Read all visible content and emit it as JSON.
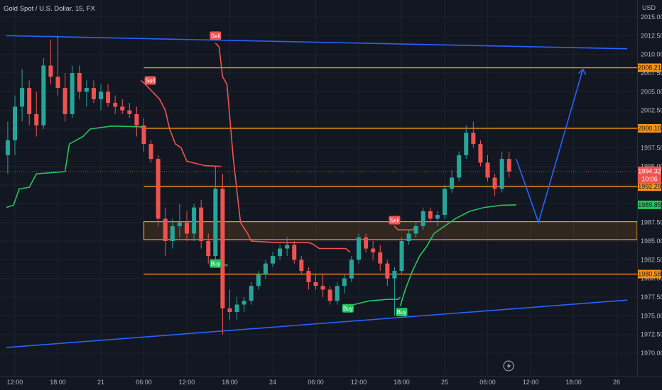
{
  "header": {
    "title": "Gold Spot / U.S. Dollar, 15, FX",
    "currency": "USD"
  },
  "chart_data": {
    "type": "candlestick",
    "title": "Gold Spot / U.S. Dollar, 15, FX",
    "y_unit": "USD",
    "ylim": [
      1967.5,
      2016.5
    ],
    "y_ticks": [
      1970,
      1972.5,
      1975,
      1977.5,
      1980,
      1982.5,
      1985,
      1987.5,
      1990,
      1992.5,
      1995,
      1997.5,
      2000,
      2002.5,
      2005,
      2007.5,
      2010,
      2012.5,
      2015
    ],
    "x_ticks": [
      {
        "label": "12:00",
        "t": 0
      },
      {
        "label": "18:00",
        "t": 6
      },
      {
        "label": "21",
        "t": 12
      },
      {
        "label": "06:00",
        "t": 18
      },
      {
        "label": "12:00",
        "t": 24
      },
      {
        "label": "18:00",
        "t": 30
      },
      {
        "label": "24",
        "t": 36
      },
      {
        "label": "06:00",
        "t": 42
      },
      {
        "label": "12:00",
        "t": 48
      },
      {
        "label": "18:00",
        "t": 54
      },
      {
        "label": "25",
        "t": 60
      },
      {
        "label": "06:00",
        "t": 66
      },
      {
        "label": "12:00",
        "t": 72
      },
      {
        "label": "18:00",
        "t": 78
      },
      {
        "label": "26",
        "t": 84
      }
    ],
    "current_price": "1994.32",
    "countdown": "10:06",
    "price_tags": [
      {
        "label": "2008.21",
        "value": 2008.21,
        "color": "#f7931a",
        "text_color": "#131722"
      },
      {
        "label": "2000.10",
        "value": 2000.1,
        "color": "#f7931a",
        "text_color": "#131722"
      },
      {
        "label": "1992.29",
        "value": 1992.29,
        "color": "#f7931a",
        "text_color": "#131722"
      },
      {
        "label": "1989.85",
        "value": 1989.85,
        "color": "#22c55e",
        "text_color": "#131722"
      },
      {
        "label": "1980.58",
        "value": 1980.58,
        "color": "#f7931a",
        "text_color": "#131722"
      }
    ],
    "horizontal_levels": [
      {
        "value": 2008.21,
        "t_start": 18
      },
      {
        "value": 2000.1,
        "t_start": 18
      },
      {
        "value": 1992.29,
        "t_start": 18
      },
      {
        "value": 1980.58,
        "t_start": 18
      }
    ],
    "zone": {
      "low": 1985.2,
      "high": 1987.6,
      "t_start": 18
    },
    "trendlines": [
      {
        "name": "upper",
        "p1": [
          -1.2,
          2012.5
        ],
        "p2": [
          85.5,
          2010.75
        ]
      },
      {
        "name": "lower",
        "p1": [
          -1.2,
          1970.75
        ],
        "p2": [
          85.5,
          1977.1
        ]
      }
    ],
    "projection": [
      [
        70.0,
        1996.0
      ],
      [
        73.1,
        1987.5
      ],
      [
        79.3,
        2008.0
      ]
    ],
    "candles": [
      [
        -1,
        1996.5,
        2001.0,
        1994.0,
        1998.5
      ],
      [
        0,
        1998.5,
        2004.5,
        1996.5,
        2003.0
      ],
      [
        1,
        2003.0,
        2008.0,
        2001.0,
        2005.5
      ],
      [
        2,
        2005.5,
        2006.5,
        2000.5,
        2002.0
      ],
      [
        3,
        2002.0,
        2005.0,
        1999.0,
        2000.5
      ],
      [
        4,
        2000.5,
        2009.5,
        2000.0,
        2008.5
      ],
      [
        5,
        2008.5,
        2012.0,
        2006.0,
        2007.0
      ],
      [
        6,
        2007.0,
        2012.5,
        2004.5,
        2005.5
      ],
      [
        7,
        2005.5,
        2007.5,
        2001.0,
        2002.0
      ],
      [
        8,
        2002.0,
        2008.5,
        2001.5,
        2007.5
      ],
      [
        9,
        2007.5,
        2008.5,
        2004.0,
        2005.0
      ],
      [
        10,
        2005.0,
        2006.5,
        2003.0,
        2005.5
      ],
      [
        11,
        2005.5,
        2006.5,
        2003.5,
        2004.0
      ],
      [
        12,
        2004.0,
        2006.0,
        2002.5,
        2005.0
      ],
      [
        13,
        2005.0,
        2006.0,
        2003.0,
        2003.5
      ],
      [
        14,
        2003.5,
        2004.5,
        2002.0,
        2003.0
      ],
      [
        15,
        2003.0,
        2004.0,
        2002.0,
        2002.5
      ],
      [
        16,
        2002.5,
        2003.5,
        2001.5,
        2002.0
      ],
      [
        17,
        2002.0,
        2003.0,
        1999.0,
        2000.5
      ],
      [
        18,
        2000.5,
        2001.5,
        1997.0,
        1998.0
      ],
      [
        19,
        1998.0,
        1998.5,
        1995.5,
        1996.0
      ],
      [
        20,
        1996.0,
        1996.5,
        1987.0,
        1988.0
      ],
      [
        21,
        1988.0,
        1989.5,
        1983.0,
        1985.0
      ],
      [
        22,
        1985.0,
        1988.0,
        1984.0,
        1987.0
      ],
      [
        23,
        1987.0,
        1990.0,
        1985.5,
        1987.5
      ],
      [
        24,
        1987.5,
        1989.0,
        1985.0,
        1986.0
      ],
      [
        25,
        1986.0,
        1990.0,
        1985.0,
        1989.5
      ],
      [
        26,
        1989.5,
        1990.5,
        1984.0,
        1985.0
      ],
      [
        27,
        1985.0,
        1986.0,
        1982.0,
        1983.0
      ],
      [
        28,
        1983.0,
        1995.0,
        1982.5,
        1992.0
      ],
      [
        29,
        1992.0,
        1994.0,
        1972.5,
        1976.0
      ],
      [
        30,
        1976.0,
        1978.5,
        1974.5,
        1975.5
      ],
      [
        31,
        1975.5,
        1977.5,
        1974.5,
        1976.5
      ],
      [
        32,
        1976.5,
        1977.5,
        1975.5,
        1977.0
      ],
      [
        33,
        1977.0,
        1979.5,
        1976.5,
        1979.0
      ],
      [
        34,
        1979.0,
        1981.0,
        1978.5,
        1980.5
      ],
      [
        35,
        1980.5,
        1982.5,
        1980.0,
        1982.0
      ],
      [
        36,
        1982.0,
        1983.5,
        1981.5,
        1983.0
      ],
      [
        37,
        1983.0,
        1984.5,
        1982.5,
        1984.0
      ],
      [
        38,
        1984.0,
        1985.5,
        1983.0,
        1984.5
      ],
      [
        39,
        1984.5,
        1985.0,
        1982.0,
        1982.5
      ],
      [
        40,
        1982.5,
        1983.0,
        1980.5,
        1981.0
      ],
      [
        41,
        1981.0,
        1981.5,
        1978.5,
        1979.5
      ],
      [
        42,
        1979.5,
        1980.5,
        1978.5,
        1979.0
      ],
      [
        43,
        1979.0,
        1980.5,
        1977.5,
        1978.5
      ],
      [
        44,
        1978.5,
        1979.0,
        1976.5,
        1977.0
      ],
      [
        45,
        1977.0,
        1979.5,
        1976.5,
        1979.0
      ],
      [
        46,
        1979.0,
        1980.5,
        1978.0,
        1980.0
      ],
      [
        47,
        1980.0,
        1983.0,
        1979.5,
        1982.5
      ],
      [
        48,
        1982.5,
        1986.0,
        1982.0,
        1985.5
      ],
      [
        49,
        1985.5,
        1986.0,
        1983.5,
        1984.0
      ],
      [
        50,
        1984.0,
        1985.0,
        1982.5,
        1983.5
      ],
      [
        51,
        1983.5,
        1984.5,
        1981.0,
        1982.0
      ],
      [
        52,
        1982.0,
        1982.5,
        1979.0,
        1980.0
      ],
      [
        53,
        1980.0,
        1981.5,
        1975.0,
        1981.0
      ],
      [
        54,
        1981.0,
        1985.5,
        1980.5,
        1985.0
      ],
      [
        55,
        1985.0,
        1986.5,
        1984.5,
        1986.0
      ],
      [
        56,
        1986.0,
        1987.5,
        1985.5,
        1987.0
      ],
      [
        57,
        1987.0,
        1989.5,
        1986.5,
        1989.0
      ],
      [
        58,
        1989.0,
        1989.5,
        1987.5,
        1988.0
      ],
      [
        59,
        1988.0,
        1989.0,
        1987.0,
        1988.5
      ],
      [
        60,
        1988.5,
        1992.5,
        1988.0,
        1992.0
      ],
      [
        61,
        1992.0,
        1994.5,
        1991.5,
        1993.5
      ],
      [
        62,
        1993.5,
        1997.0,
        1993.0,
        1996.5
      ],
      [
        63,
        1996.5,
        2000.5,
        1996.0,
        1999.5
      ],
      [
        64,
        1999.5,
        2001.0,
        1997.5,
        1998.0
      ],
      [
        65,
        1998.0,
        1998.5,
        1995.0,
        1995.5
      ],
      [
        66,
        1995.5,
        1996.5,
        1993.0,
        1993.5
      ],
      [
        67,
        1993.5,
        1994.0,
        1991.0,
        1992.0
      ],
      [
        68,
        1992.0,
        1997.0,
        1991.5,
        1996.0
      ],
      [
        69,
        1996.0,
        1997.0,
        1993.5,
        1994.32
      ]
    ],
    "indicator_lines": [
      {
        "name": "green",
        "color": "#22c55e",
        "points": [
          [
            -1.2,
            1989.5
          ],
          [
            -0.2,
            1989.8
          ],
          [
            0.6,
            1992.0
          ],
          [
            2,
            1992.2
          ],
          [
            3,
            1994.0
          ],
          [
            7,
            1994.3
          ],
          [
            7.6,
            1998.0
          ],
          [
            9.5,
            1999.0
          ],
          [
            10.5,
            2000.0
          ],
          [
            13.5,
            2000.4
          ],
          [
            17.6,
            2000.3
          ],
          [
            17.6,
            2000.1
          ]
        ]
      },
      {
        "name": "green",
        "color": "#22c55e",
        "points": [
          [
            28.2,
            1982.0
          ],
          [
            28.4,
            1981.8
          ],
          [
            29.6,
            1981.8
          ],
          [
            29.6,
            1981.6
          ]
        ]
      },
      {
        "name": "green",
        "color": "#22c55e",
        "points": [
          [
            46.5,
            1976.3
          ],
          [
            49.5,
            1977.0
          ],
          [
            52,
            1977.2
          ],
          [
            53.5,
            1977.2
          ],
          [
            53.8,
            1977.5
          ]
        ]
      },
      {
        "name": "green",
        "color": "#22c55e",
        "points": [
          [
            53.8,
            1976.3
          ],
          [
            54.5,
            1978.5
          ],
          [
            55.5,
            1981.0
          ],
          [
            56.5,
            1983.0
          ],
          [
            57.5,
            1984.3
          ],
          [
            58.5,
            1986.0
          ],
          [
            60,
            1987.0
          ],
          [
            61.5,
            1988.0
          ],
          [
            63.5,
            1989.0
          ],
          [
            65.5,
            1989.5
          ],
          [
            68,
            1989.8
          ],
          [
            70,
            1989.85
          ]
        ]
      },
      {
        "name": "red",
        "color": "#ef5350",
        "points": [
          [
            17.6,
            2006.5
          ],
          [
            18.2,
            2006.0
          ],
          [
            20.2,
            2004.0
          ],
          [
            21.0,
            2002.5
          ],
          [
            21.6,
            2000.0
          ],
          [
            22.4,
            1998.0
          ],
          [
            23.2,
            1997.5
          ],
          [
            24.0,
            1995.7
          ],
          [
            26.5,
            1995.1
          ],
          [
            28.8,
            1995.0
          ],
          [
            28.8,
            1995.0
          ]
        ]
      },
      {
        "name": "red",
        "color": "#ef5350",
        "points": [
          [
            28.0,
            2011.5
          ],
          [
            28.5,
            2011.0
          ],
          [
            29.0,
            2007.0
          ],
          [
            29.6,
            2006.0
          ],
          [
            30.5,
            1996.0
          ],
          [
            31.2,
            1990.0
          ],
          [
            31.5,
            1987.5
          ],
          [
            32.5,
            1986.0
          ],
          [
            33.0,
            1985.0
          ],
          [
            36.5,
            1984.8
          ],
          [
            41.0,
            1984.8
          ],
          [
            41.6,
            1984.6
          ],
          [
            42.5,
            1984.0
          ],
          [
            45.5,
            1984.0
          ],
          [
            46.2,
            1984.0
          ],
          [
            46.8,
            1983.5
          ]
        ]
      },
      {
        "name": "red",
        "color": "#ef5350",
        "points": [
          [
            53.0,
            1987.0
          ],
          [
            53.5,
            1986.5
          ],
          [
            55.5,
            1986.5
          ],
          [
            56.0,
            1987.0
          ]
        ]
      }
    ],
    "signals": [
      {
        "label": "Sell",
        "type": "sell",
        "t": 28.0,
        "price": 2012.5
      },
      {
        "label": "Sell",
        "type": "sell",
        "t": 18.9,
        "price": 2006.5
      },
      {
        "label": "Sell",
        "type": "sell",
        "t": 53.0,
        "price": 1987.8
      },
      {
        "label": "Buy",
        "type": "buy",
        "t": 28.0,
        "price": 1982.0
      },
      {
        "label": "Buy",
        "type": "buy",
        "t": 46.5,
        "price": 1976.0
      },
      {
        "label": "Buy",
        "type": "buy",
        "t": 54.0,
        "price": 1975.5
      }
    ]
  }
}
